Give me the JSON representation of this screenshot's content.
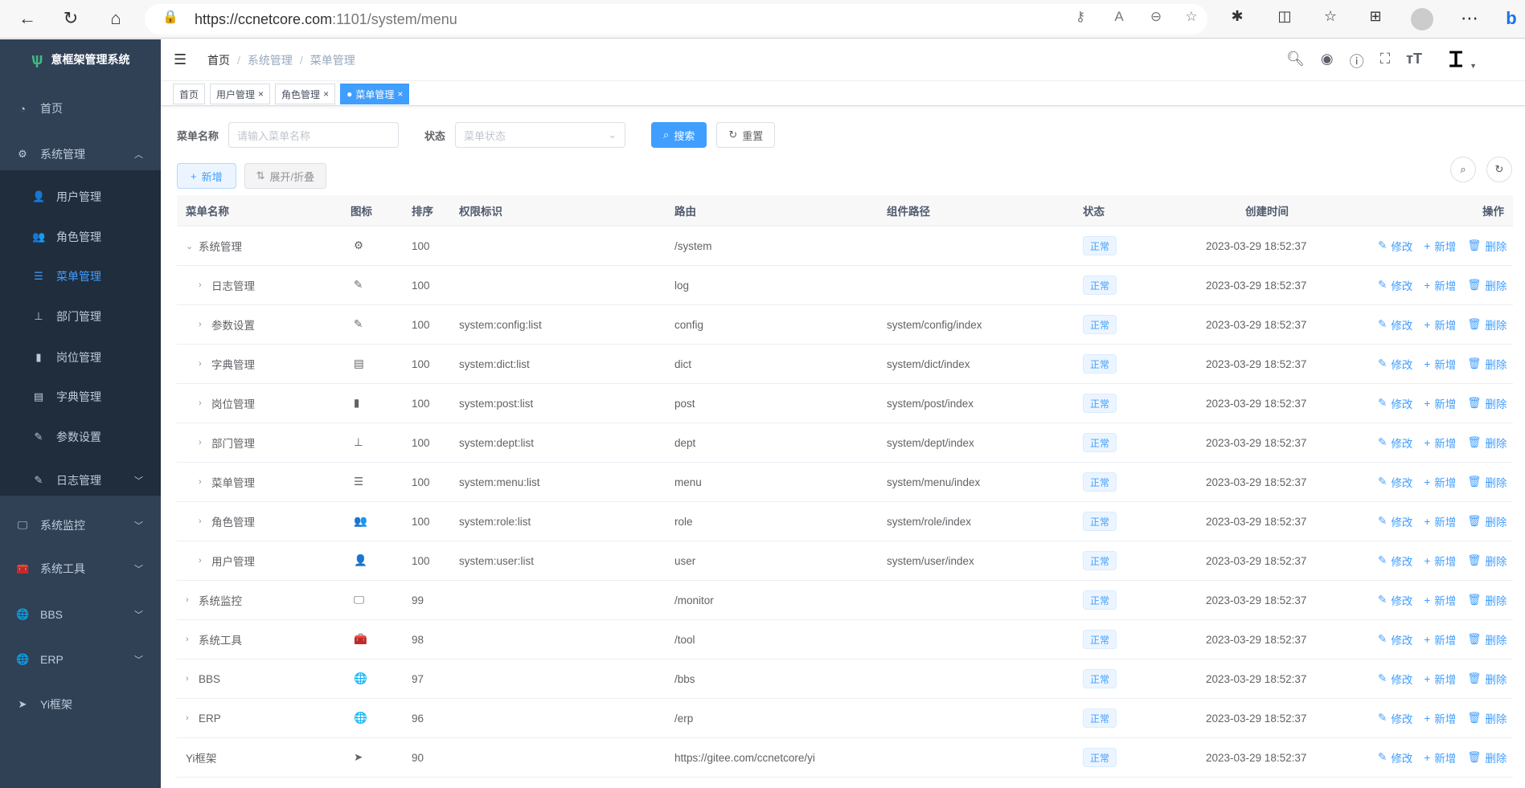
{
  "browser": {
    "url_host": "https://ccnetcore.com",
    "url_path": ":1101/system/menu"
  },
  "sidebar": {
    "title": "意框架管理系统",
    "items": [
      {
        "label": "首页",
        "icon": "dashboard-icon"
      },
      {
        "label": "系统管理",
        "icon": "gear-icon",
        "expanded": true
      },
      {
        "label": "用户管理",
        "icon": "user-icon"
      },
      {
        "label": "角色管理",
        "icon": "peoples-icon"
      },
      {
        "label": "菜单管理",
        "icon": "tree-table-icon",
        "active": true
      },
      {
        "label": "部门管理",
        "icon": "tree-icon"
      },
      {
        "label": "岗位管理",
        "icon": "post-icon"
      },
      {
        "label": "字典管理",
        "icon": "dict-icon"
      },
      {
        "label": "参数设置",
        "icon": "edit-icon"
      },
      {
        "label": "日志管理",
        "icon": "log-icon"
      },
      {
        "label": "系统监控",
        "icon": "monitor-icon"
      },
      {
        "label": "系统工具",
        "icon": "tool-icon"
      },
      {
        "label": "BBS",
        "icon": "globe-icon"
      },
      {
        "label": "ERP",
        "icon": "globe-icon"
      },
      {
        "label": "Yi框架",
        "icon": "send-icon"
      }
    ]
  },
  "breadcrumb": [
    "首页",
    "系统管理",
    "菜单管理"
  ],
  "tags": [
    "首页",
    "用户管理",
    "角色管理",
    "菜单管理"
  ],
  "form": {
    "name_label": "菜单名称",
    "name_placeholder": "请输入菜单名称",
    "status_label": "状态",
    "status_placeholder": "菜单状态",
    "search": "搜索",
    "reset": "重置"
  },
  "toolbar": {
    "add": "新增",
    "expand": "展开/折叠"
  },
  "table": {
    "headers": [
      "菜单名称",
      "图标",
      "排序",
      "权限标识",
      "路由",
      "组件路径",
      "状态",
      "创建时间",
      "操作"
    ],
    "ops": [
      "修改",
      "新增",
      "删除"
    ],
    "rows": [
      {
        "name": "系统管理",
        "caret": "v",
        "indent": 0,
        "icon": "⚙",
        "sort": "100",
        "perm": "",
        "route": "/system",
        "comp": "",
        "status": "正常",
        "time": "2023-03-29 18:52:37"
      },
      {
        "name": "日志管理",
        "caret": ">",
        "indent": 1,
        "icon": "✎",
        "sort": "100",
        "perm": "",
        "route": "log",
        "comp": "",
        "status": "正常",
        "time": "2023-03-29 18:52:37"
      },
      {
        "name": "参数设置",
        "caret": ">",
        "indent": 1,
        "icon": "✎",
        "sort": "100",
        "perm": "system:config:list",
        "route": "config",
        "comp": "system/config/index",
        "status": "正常",
        "time": "2023-03-29 18:52:37"
      },
      {
        "name": "字典管理",
        "caret": ">",
        "indent": 1,
        "icon": "▤",
        "sort": "100",
        "perm": "system:dict:list",
        "route": "dict",
        "comp": "system/dict/index",
        "status": "正常",
        "time": "2023-03-29 18:52:37"
      },
      {
        "name": "岗位管理",
        "caret": ">",
        "indent": 1,
        "icon": "▮",
        "sort": "100",
        "perm": "system:post:list",
        "route": "post",
        "comp": "system/post/index",
        "status": "正常",
        "time": "2023-03-29 18:52:37"
      },
      {
        "name": "部门管理",
        "caret": ">",
        "indent": 1,
        "icon": "⊥",
        "sort": "100",
        "perm": "system:dept:list",
        "route": "dept",
        "comp": "system/dept/index",
        "status": "正常",
        "time": "2023-03-29 18:52:37"
      },
      {
        "name": "菜单管理",
        "caret": ">",
        "indent": 1,
        "icon": "☰",
        "sort": "100",
        "perm": "system:menu:list",
        "route": "menu",
        "comp": "system/menu/index",
        "status": "正常",
        "time": "2023-03-29 18:52:37"
      },
      {
        "name": "角色管理",
        "caret": ">",
        "indent": 1,
        "icon": "👥",
        "sort": "100",
        "perm": "system:role:list",
        "route": "role",
        "comp": "system/role/index",
        "status": "正常",
        "time": "2023-03-29 18:52:37"
      },
      {
        "name": "用户管理",
        "caret": ">",
        "indent": 1,
        "icon": "👤",
        "sort": "100",
        "perm": "system:user:list",
        "route": "user",
        "comp": "system/user/index",
        "status": "正常",
        "time": "2023-03-29 18:52:37"
      },
      {
        "name": "系统监控",
        "caret": ">",
        "indent": 0,
        "icon": "🖵",
        "sort": "99",
        "perm": "",
        "route": "/monitor",
        "comp": "",
        "status": "正常",
        "time": "2023-03-29 18:52:37"
      },
      {
        "name": "系统工具",
        "caret": ">",
        "indent": 0,
        "icon": "🧰",
        "sort": "98",
        "perm": "",
        "route": "/tool",
        "comp": "",
        "status": "正常",
        "time": "2023-03-29 18:52:37"
      },
      {
        "name": "BBS",
        "caret": ">",
        "indent": 0,
        "icon": "🌐",
        "sort": "97",
        "perm": "",
        "route": "/bbs",
        "comp": "",
        "status": "正常",
        "time": "2023-03-29 18:52:37"
      },
      {
        "name": "ERP",
        "caret": ">",
        "indent": 0,
        "icon": "🌐",
        "sort": "96",
        "perm": "",
        "route": "/erp",
        "comp": "",
        "status": "正常",
        "time": "2023-03-29 18:52:37"
      },
      {
        "name": "Yi框架",
        "caret": "",
        "indent": 0,
        "icon": "➤",
        "sort": "90",
        "perm": "",
        "route": "https://gitee.com/ccnetcore/yi",
        "comp": "",
        "status": "正常",
        "time": "2023-03-29 18:52:37"
      }
    ]
  },
  "colors": {
    "sidebar": "#304156",
    "submenu": "#1f2d3d",
    "accent": "#409eff"
  }
}
